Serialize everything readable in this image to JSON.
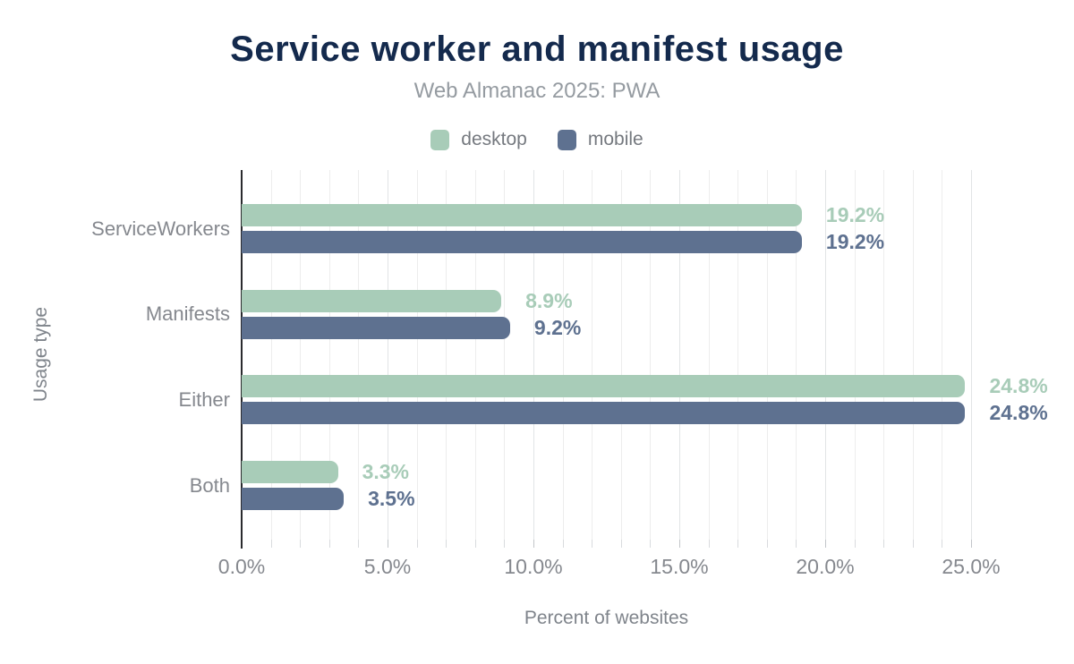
{
  "chart_data": {
    "type": "bar",
    "orientation": "horizontal",
    "title": "Service worker and manifest usage",
    "subtitle": "Web Almanac 2025: PWA",
    "xlabel": "Percent of websites",
    "ylabel": "Usage type",
    "categories": [
      "ServiceWorkers",
      "Manifests",
      "Either",
      "Both"
    ],
    "series": [
      {
        "name": "desktop",
        "color": "#a8ccb8",
        "values": [
          19.2,
          8.9,
          24.8,
          3.3
        ],
        "labels": [
          "19.2%",
          "8.9%",
          "24.8%",
          "3.3%"
        ]
      },
      {
        "name": "mobile",
        "color": "#5e7190",
        "values": [
          19.2,
          9.2,
          24.8,
          3.5
        ],
        "labels": [
          "19.2%",
          "9.2%",
          "24.8%",
          "3.5%"
        ]
      }
    ],
    "xlim": [
      0,
      25
    ],
    "x_tick_step": 5,
    "x_ticks": [
      {
        "value": 0,
        "label": "0.0%"
      },
      {
        "value": 5,
        "label": "5.0%"
      },
      {
        "value": 10,
        "label": "10.0%"
      },
      {
        "value": 15,
        "label": "15.0%"
      },
      {
        "value": 20,
        "label": "20.0%"
      },
      {
        "value": 25,
        "label": "25.0%"
      }
    ],
    "minor_grid_step": 1,
    "grid": "vertical minor gridlines every 1%",
    "legend_position": "top"
  },
  "colors": {
    "title": "#142a4d",
    "subtitle": "#959ba1",
    "axis_text": "#85888e",
    "desktop": "#a8ccb8",
    "mobile": "#5e7190",
    "background": "#ffffff"
  }
}
